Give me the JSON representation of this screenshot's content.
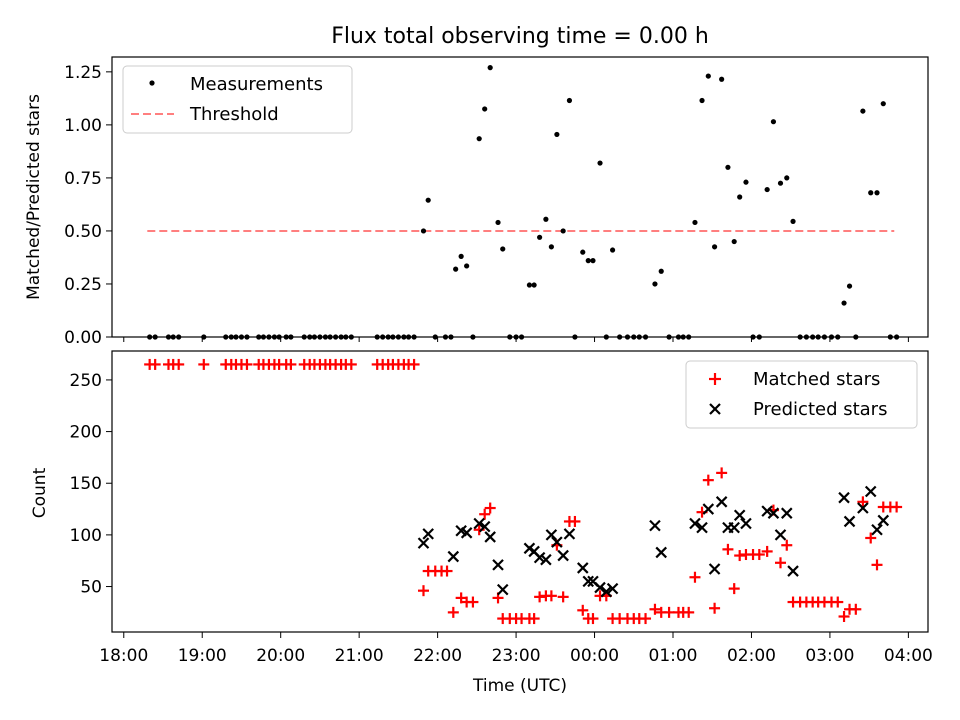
{
  "chart_data": [
    {
      "type": "scatter",
      "title": "Flux total observing time = 0.00 h",
      "xlabel": "",
      "ylabel": "Matched/Predicted stars",
      "x_unit": "hours since 18:00 UTC",
      "xlim": [
        -0.15,
        10.25
      ],
      "ylim": [
        0.0,
        1.32
      ],
      "yticks": [
        0.0,
        0.25,
        0.5,
        0.75,
        1.0,
        1.25
      ],
      "ytick_labels": [
        "0.00",
        "0.25",
        "0.50",
        "0.75",
        "1.00",
        "1.25"
      ],
      "legend_position": "top-left",
      "series": [
        {
          "name": "Measurements",
          "kind": "points",
          "color": "#000000",
          "points": [
            [
              0.33,
              0
            ],
            [
              0.4,
              0
            ],
            [
              0.57,
              0
            ],
            [
              0.63,
              0
            ],
            [
              0.7,
              0
            ],
            [
              1.02,
              0
            ],
            [
              1.3,
              0
            ],
            [
              1.37,
              0
            ],
            [
              1.43,
              0
            ],
            [
              1.5,
              0
            ],
            [
              1.57,
              0
            ],
            [
              1.72,
              0
            ],
            [
              1.78,
              0
            ],
            [
              1.85,
              0
            ],
            [
              1.92,
              0
            ],
            [
              1.98,
              0
            ],
            [
              2.07,
              0
            ],
            [
              2.13,
              0
            ],
            [
              2.3,
              0
            ],
            [
              2.37,
              0
            ],
            [
              2.43,
              0
            ],
            [
              2.5,
              0
            ],
            [
              2.57,
              0
            ],
            [
              2.63,
              0
            ],
            [
              2.7,
              0
            ],
            [
              2.77,
              0
            ],
            [
              2.83,
              0
            ],
            [
              2.9,
              0
            ],
            [
              3.23,
              0
            ],
            [
              3.3,
              0
            ],
            [
              3.37,
              0
            ],
            [
              3.43,
              0
            ],
            [
              3.5,
              0
            ],
            [
              3.57,
              0
            ],
            [
              3.63,
              0
            ],
            [
              3.7,
              0
            ],
            [
              3.82,
              0.5
            ],
            [
              3.88,
              0.645
            ],
            [
              3.97,
              0
            ],
            [
              4.1,
              0
            ],
            [
              4.17,
              0
            ],
            [
              4.23,
              0.32
            ],
            [
              4.3,
              0.38
            ],
            [
              4.37,
              0.335
            ],
            [
              4.45,
              0
            ],
            [
              4.53,
              0.935
            ],
            [
              4.6,
              1.075
            ],
            [
              4.67,
              1.27
            ],
            [
              4.77,
              0.54
            ],
            [
              4.83,
              0.415
            ],
            [
              4.92,
              0
            ],
            [
              5.0,
              0
            ],
            [
              5.07,
              0
            ],
            [
              5.17,
              0.245
            ],
            [
              5.23,
              0.245
            ],
            [
              5.3,
              0.47
            ],
            [
              5.38,
              0.555
            ],
            [
              5.45,
              0.425
            ],
            [
              5.52,
              0.955
            ],
            [
              5.6,
              0.5
            ],
            [
              5.68,
              1.115
            ],
            [
              5.75,
              0
            ],
            [
              5.85,
              0.4
            ],
            [
              5.92,
              0.36
            ],
            [
              5.98,
              0.36
            ],
            [
              6.07,
              0.82
            ],
            [
              6.15,
              0
            ],
            [
              6.23,
              0.41
            ],
            [
              6.32,
              0
            ],
            [
              6.42,
              0
            ],
            [
              6.5,
              0
            ],
            [
              6.57,
              0
            ],
            [
              6.65,
              0
            ],
            [
              6.77,
              0.25
            ],
            [
              6.85,
              0.31
            ],
            [
              6.95,
              0
            ],
            [
              7.07,
              0
            ],
            [
              7.13,
              0
            ],
            [
              7.2,
              0
            ],
            [
              7.28,
              0.54
            ],
            [
              7.37,
              1.115
            ],
            [
              7.45,
              1.23
            ],
            [
              7.53,
              0.425
            ],
            [
              7.62,
              1.215
            ],
            [
              7.7,
              0.8
            ],
            [
              7.78,
              0.45
            ],
            [
              7.85,
              0.66
            ],
            [
              7.93,
              0.73
            ],
            [
              8.02,
              0
            ],
            [
              8.1,
              0
            ],
            [
              8.2,
              0.695
            ],
            [
              8.28,
              1.015
            ],
            [
              8.37,
              0.725
            ],
            [
              8.45,
              0.75
            ],
            [
              8.53,
              0.545
            ],
            [
              8.62,
              0
            ],
            [
              8.7,
              0
            ],
            [
              8.78,
              0
            ],
            [
              8.85,
              0
            ],
            [
              8.93,
              0
            ],
            [
              9.02,
              0
            ],
            [
              9.1,
              0
            ],
            [
              9.18,
              0.16
            ],
            [
              9.25,
              0.24
            ],
            [
              9.33,
              0
            ],
            [
              9.42,
              1.065
            ],
            [
              9.52,
              0.68
            ],
            [
              9.6,
              0.68
            ],
            [
              9.68,
              1.1
            ],
            [
              9.77,
              0
            ],
            [
              9.85,
              0
            ]
          ]
        },
        {
          "name": "Threshold",
          "kind": "dashed-line",
          "color": "#ff7f7f",
          "x": [
            0.3,
            9.82
          ],
          "y": [
            0.5,
            0.5
          ]
        }
      ]
    },
    {
      "type": "scatter",
      "title": "",
      "xlabel": "Time (UTC)",
      "ylabel": "Count",
      "x_unit": "hours since 18:00 UTC",
      "xlim": [
        -0.15,
        10.25
      ],
      "ylim": [
        6,
        278
      ],
      "yticks": [
        50,
        100,
        150,
        200,
        250
      ],
      "ytick_labels": [
        "50",
        "100",
        "150",
        "200",
        "250"
      ],
      "xticks": [
        0,
        1,
        2,
        3,
        4,
        5,
        6,
        7,
        8,
        9,
        10
      ],
      "xtick_labels": [
        "18:00",
        "19:00",
        "20:00",
        "21:00",
        "22:00",
        "23:00",
        "00:00",
        "01:00",
        "02:00",
        "03:00",
        "04:00"
      ],
      "legend_position": "top-right",
      "series": [
        {
          "name": "Matched stars",
          "marker": "plus",
          "color": "#ff0000",
          "points": [
            [
              0.33,
              265
            ],
            [
              0.4,
              265
            ],
            [
              0.57,
              265
            ],
            [
              0.63,
              265
            ],
            [
              0.7,
              265
            ],
            [
              1.02,
              265
            ],
            [
              1.3,
              265
            ],
            [
              1.37,
              265
            ],
            [
              1.43,
              265
            ],
            [
              1.5,
              265
            ],
            [
              1.57,
              265
            ],
            [
              1.72,
              265
            ],
            [
              1.78,
              265
            ],
            [
              1.85,
              265
            ],
            [
              1.92,
              265
            ],
            [
              1.98,
              265
            ],
            [
              2.07,
              265
            ],
            [
              2.13,
              265
            ],
            [
              2.3,
              265
            ],
            [
              2.37,
              265
            ],
            [
              2.43,
              265
            ],
            [
              2.5,
              265
            ],
            [
              2.57,
              265
            ],
            [
              2.63,
              265
            ],
            [
              2.7,
              265
            ],
            [
              2.77,
              265
            ],
            [
              2.83,
              265
            ],
            [
              2.9,
              265
            ],
            [
              3.23,
              265
            ],
            [
              3.3,
              265
            ],
            [
              3.37,
              265
            ],
            [
              3.43,
              265
            ],
            [
              3.5,
              265
            ],
            [
              3.57,
              265
            ],
            [
              3.63,
              265
            ],
            [
              3.7,
              265
            ],
            [
              3.82,
              46
            ],
            [
              3.88,
              65
            ],
            [
              3.97,
              65
            ],
            [
              4.05,
              65
            ],
            [
              4.12,
              65
            ],
            [
              4.2,
              25
            ],
            [
              4.3,
              39
            ],
            [
              4.37,
              35
            ],
            [
              4.45,
              35
            ],
            [
              4.53,
              105
            ],
            [
              4.6,
              120
            ],
            [
              4.67,
              126
            ],
            [
              4.77,
              39
            ],
            [
              4.83,
              19
            ],
            [
              4.92,
              19
            ],
            [
              5.0,
              19
            ],
            [
              5.07,
              19
            ],
            [
              5.17,
              19
            ],
            [
              5.23,
              19
            ],
            [
              5.3,
              40
            ],
            [
              5.38,
              41
            ],
            [
              5.45,
              41
            ],
            [
              5.52,
              90
            ],
            [
              5.6,
              40
            ],
            [
              5.68,
              113
            ],
            [
              5.75,
              113
            ],
            [
              5.85,
              27
            ],
            [
              5.92,
              19
            ],
            [
              5.98,
              19
            ],
            [
              6.07,
              41
            ],
            [
              6.15,
              41
            ],
            [
              6.23,
              19
            ],
            [
              6.32,
              19
            ],
            [
              6.42,
              19
            ],
            [
              6.5,
              19
            ],
            [
              6.57,
              19
            ],
            [
              6.65,
              19
            ],
            [
              6.77,
              28
            ],
            [
              6.85,
              25
            ],
            [
              6.95,
              25
            ],
            [
              7.07,
              25
            ],
            [
              7.13,
              25
            ],
            [
              7.2,
              25
            ],
            [
              7.28,
              59
            ],
            [
              7.37,
              122
            ],
            [
              7.45,
              153
            ],
            [
              7.53,
              29
            ],
            [
              7.62,
              160
            ],
            [
              7.7,
              86
            ],
            [
              7.78,
              48
            ],
            [
              7.85,
              80
            ],
            [
              7.93,
              81
            ],
            [
              8.02,
              81
            ],
            [
              8.1,
              81
            ],
            [
              8.2,
              84
            ],
            [
              8.28,
              124
            ],
            [
              8.37,
              73
            ],
            [
              8.45,
              90
            ],
            [
              8.53,
              35
            ],
            [
              8.62,
              35
            ],
            [
              8.7,
              35
            ],
            [
              8.78,
              35
            ],
            [
              8.85,
              35
            ],
            [
              8.93,
              35
            ],
            [
              9.02,
              35
            ],
            [
              9.1,
              35
            ],
            [
              9.18,
              21
            ],
            [
              9.25,
              28
            ],
            [
              9.33,
              28
            ],
            [
              9.42,
              132
            ],
            [
              9.52,
              97
            ],
            [
              9.6,
              71
            ],
            [
              9.68,
              127
            ],
            [
              9.77,
              127
            ],
            [
              9.85,
              127
            ]
          ]
        },
        {
          "name": "Predicted stars",
          "marker": "x",
          "color": "#000000",
          "points": [
            [
              3.82,
              92
            ],
            [
              3.88,
              101
            ],
            [
              4.2,
              79
            ],
            [
              4.3,
              104
            ],
            [
              4.37,
              102
            ],
            [
              4.53,
              111
            ],
            [
              4.6,
              108
            ],
            [
              4.67,
              98
            ],
            [
              4.77,
              71
            ],
            [
              4.83,
              47
            ],
            [
              5.17,
              87
            ],
            [
              5.23,
              84
            ],
            [
              5.3,
              78
            ],
            [
              5.38,
              76
            ],
            [
              5.45,
              100
            ],
            [
              5.52,
              93
            ],
            [
              5.6,
              80
            ],
            [
              5.68,
              101
            ],
            [
              5.85,
              68
            ],
            [
              5.92,
              55
            ],
            [
              5.98,
              55
            ],
            [
              6.07,
              49
            ],
            [
              6.15,
              45
            ],
            [
              6.23,
              48
            ],
            [
              6.77,
              109
            ],
            [
              6.85,
              83
            ],
            [
              7.28,
              111
            ],
            [
              7.37,
              107
            ],
            [
              7.45,
              125
            ],
            [
              7.53,
              67
            ],
            [
              7.62,
              132
            ],
            [
              7.7,
              107
            ],
            [
              7.78,
              107
            ],
            [
              7.85,
              119
            ],
            [
              7.93,
              111
            ],
            [
              8.2,
              123
            ],
            [
              8.28,
              121
            ],
            [
              8.37,
              100
            ],
            [
              8.45,
              121
            ],
            [
              8.53,
              65
            ],
            [
              9.18,
              136
            ],
            [
              9.25,
              113
            ],
            [
              9.42,
              126
            ],
            [
              9.52,
              142
            ],
            [
              9.6,
              105
            ],
            [
              9.68,
              114
            ]
          ]
        }
      ]
    }
  ]
}
